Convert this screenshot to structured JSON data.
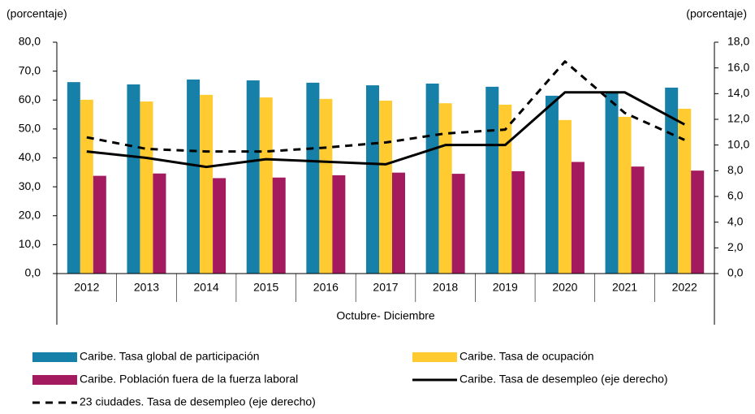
{
  "chart_data": {
    "type": "bar",
    "y_label": "(porcentaje)",
    "y2_label": "(porcentaje)",
    "x_label": "Octubre- Diciembre",
    "categories": [
      "2012",
      "2013",
      "2014",
      "2015",
      "2016",
      "2017",
      "2018",
      "2019",
      "2020",
      "2021",
      "2022"
    ],
    "ylim": [
      0,
      80
    ],
    "yticks": [
      {
        "value": 0,
        "label": "0,0"
      },
      {
        "value": 10,
        "label": "10,0"
      },
      {
        "value": 20,
        "label": "20,0"
      },
      {
        "value": 30,
        "label": "30,0"
      },
      {
        "value": 40,
        "label": "40,0"
      },
      {
        "value": 50,
        "label": "50,0"
      },
      {
        "value": 60,
        "label": "60,0"
      },
      {
        "value": 70,
        "label": "70,0"
      },
      {
        "value": 80,
        "label": "80,0"
      }
    ],
    "y2lim": [
      0,
      18
    ],
    "y2ticks": [
      {
        "value": 0,
        "label": "0,0"
      },
      {
        "value": 2,
        "label": "2,0"
      },
      {
        "value": 4,
        "label": "4,0"
      },
      {
        "value": 6,
        "label": "6,0"
      },
      {
        "value": 8,
        "label": "8,0"
      },
      {
        "value": 10,
        "label": "10,0"
      },
      {
        "value": 12,
        "label": "12,0"
      },
      {
        "value": 14,
        "label": "14,0"
      },
      {
        "value": 16,
        "label": "16,0"
      },
      {
        "value": 18,
        "label": "18,0"
      }
    ],
    "series": [
      {
        "name": "Caribe. Tasa global de participación",
        "type": "bar",
        "color": "#1680a8",
        "values": [
          66.2,
          65.4,
          67.1,
          66.8,
          66.0,
          65.1,
          65.7,
          64.6,
          61.5,
          62.9,
          64.3
        ]
      },
      {
        "name": "Caribe. Tasa de ocupación",
        "type": "bar",
        "color": "#ffcb31",
        "values": [
          60.1,
          59.5,
          61.8,
          60.9,
          60.4,
          59.8,
          58.9,
          58.4,
          53.1,
          54.2,
          57.0
        ]
      },
      {
        "name": "Caribe. Población fuera de la fuerza laboral",
        "type": "bar",
        "color": "#a31a5f",
        "values": [
          33.8,
          34.6,
          33.0,
          33.2,
          34.0,
          34.9,
          34.5,
          35.4,
          38.6,
          37.0,
          35.6
        ]
      },
      {
        "name": "Caribe. Tasa de desempleo (eje derecho)",
        "type": "line",
        "axis": "y2",
        "color": "#000000",
        "dashed": false,
        "values": [
          9.5,
          9.0,
          8.3,
          8.9,
          8.7,
          8.5,
          10.0,
          10.0,
          14.1,
          14.1,
          11.6
        ]
      },
      {
        "name": "23 ciudades. Tasa de desempleo (eje derecho)",
        "type": "line",
        "axis": "y2",
        "color": "#000000",
        "dashed": true,
        "values": [
          10.6,
          9.7,
          9.5,
          9.5,
          9.8,
          10.2,
          10.9,
          11.2,
          16.5,
          12.5,
          10.4
        ]
      }
    ]
  }
}
